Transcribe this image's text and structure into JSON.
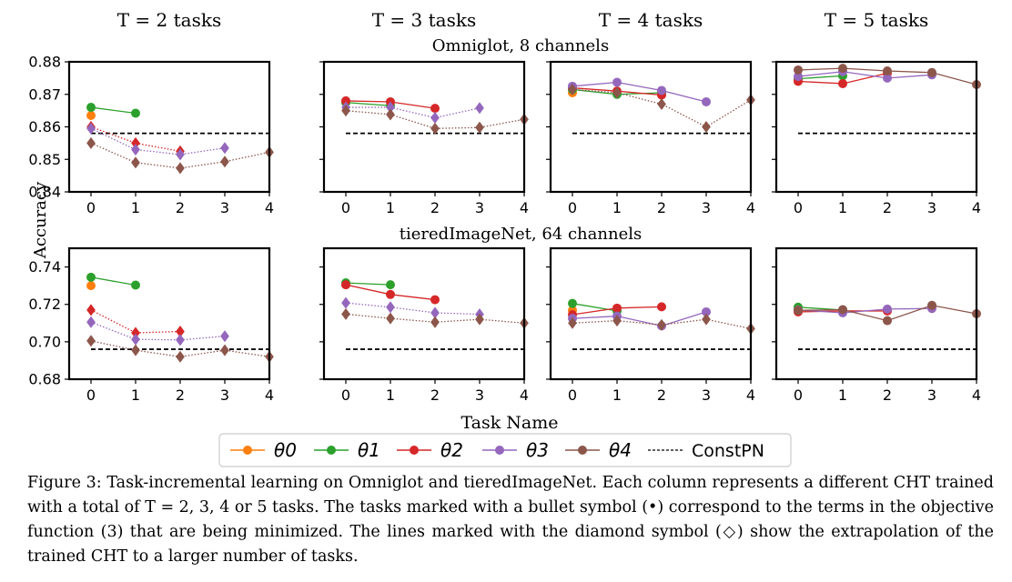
{
  "figure": {
    "column_titles": [
      "T = 2 tasks",
      "T = 3 tasks",
      "T = 4 tasks",
      "T = 5 tasks"
    ],
    "row_titles": [
      "Omniglot, 8 channels",
      "tieredImageNet, 64 channels"
    ],
    "ylabel": "Accuracy",
    "xlabel": "Task Name",
    "legend": [
      "θ0",
      "θ1",
      "θ2",
      "θ3",
      "θ4",
      "ConstPN"
    ],
    "colors": {
      "theta0": "#ff7f0e",
      "theta1": "#2ca02c",
      "theta2": "#d62728",
      "theta3": "#9467bd",
      "theta4": "#8c564b",
      "constpn": "#000000"
    }
  },
  "caption": {
    "label": "Figure 3:",
    "text": "Task-incremental learning on Omniglot and tieredImageNet. Each column represents a different CHT trained with a total of T = 2, 3, 4 or 5 tasks. The tasks marked with a bullet symbol (•) correspond to the terms in the objective function (3) that are being minimized. The lines marked with the diamond symbol (◇) show the extrapolation of the trained CHT to a larger number of tasks."
  },
  "chart_data": [
    {
      "type": "line",
      "panel": "Omniglot T=2",
      "x": [
        0,
        1,
        2,
        3,
        4
      ],
      "ylim": [
        0.84,
        0.88
      ],
      "yticks": [
        "0.84",
        "0.85",
        "0.86",
        "0.87",
        "0.88"
      ],
      "constpn": 0.858,
      "series": [
        {
          "name": "θ0",
          "trained": [
            [
              0,
              0.8635
            ]
          ],
          "extrap": []
        },
        {
          "name": "θ1",
          "trained": [
            [
              0,
              0.866
            ],
            [
              1,
              0.8642
            ]
          ],
          "extrap": []
        },
        {
          "name": "θ2",
          "trained": [],
          "extrap": [
            [
              0,
              0.86
            ],
            [
              1,
              0.855
            ],
            [
              2,
              0.8525
            ]
          ]
        },
        {
          "name": "θ3",
          "trained": [],
          "extrap": [
            [
              0,
              0.8595
            ],
            [
              1,
              0.853
            ],
            [
              2,
              0.8515
            ],
            [
              3,
              0.8535
            ]
          ]
        },
        {
          "name": "θ4",
          "trained": [],
          "extrap": [
            [
              0,
              0.855
            ],
            [
              1,
              0.849
            ],
            [
              2,
              0.8473
            ],
            [
              3,
              0.8493
            ],
            [
              4,
              0.8522
            ]
          ]
        }
      ]
    },
    {
      "type": "line",
      "panel": "Omniglot T=3",
      "x": [
        0,
        1,
        2,
        3,
        4
      ],
      "ylim": [
        0.84,
        0.88
      ],
      "yticks": [],
      "constpn": 0.858,
      "series": [
        {
          "name": "θ0",
          "trained": [
            [
              0,
              0.8675
            ]
          ],
          "extrap": []
        },
        {
          "name": "θ1",
          "trained": [
            [
              0,
              0.8675
            ],
            [
              1,
              0.8665
            ]
          ],
          "extrap": []
        },
        {
          "name": "θ2",
          "trained": [
            [
              0,
              0.868
            ],
            [
              1,
              0.8677
            ],
            [
              2,
              0.8657
            ]
          ],
          "extrap": []
        },
        {
          "name": "θ3",
          "trained": [],
          "extrap": [
            [
              0,
              0.866
            ],
            [
              1,
              0.866
            ],
            [
              2,
              0.8628
            ],
            [
              3,
              0.8658
            ]
          ]
        },
        {
          "name": "θ4",
          "trained": [],
          "extrap": [
            [
              0,
              0.865
            ],
            [
              1,
              0.8638
            ],
            [
              2,
              0.8595
            ],
            [
              3,
              0.8598
            ],
            [
              4,
              0.8623
            ]
          ]
        }
      ]
    },
    {
      "type": "line",
      "panel": "Omniglot T=4",
      "x": [
        0,
        1,
        2,
        3,
        4
      ],
      "ylim": [
        0.84,
        0.88
      ],
      "yticks": [],
      "constpn": 0.858,
      "series": [
        {
          "name": "θ0",
          "trained": [
            [
              0,
              0.8705
            ]
          ],
          "extrap": []
        },
        {
          "name": "θ1",
          "trained": [
            [
              0,
              0.8715
            ],
            [
              1,
              0.87
            ],
            [
              2,
              0.8705
            ]
          ],
          "extrap": []
        },
        {
          "name": "θ2",
          "trained": [
            [
              0,
              0.872
            ],
            [
              1,
              0.871
            ],
            [
              2,
              0.8698
            ]
          ],
          "extrap": []
        },
        {
          "name": "θ3",
          "trained": [
            [
              0,
              0.8725
            ],
            [
              1,
              0.8737
            ],
            [
              2,
              0.8712
            ],
            [
              3,
              0.8677
            ]
          ],
          "extrap": []
        },
        {
          "name": "θ4",
          "trained": [],
          "extrap": [
            [
              0,
              0.8715
            ],
            [
              1,
              0.8705
            ],
            [
              2,
              0.867
            ],
            [
              3,
              0.86
            ],
            [
              4,
              0.8683
            ]
          ]
        }
      ]
    },
    {
      "type": "line",
      "panel": "Omniglot T=5",
      "x": [
        0,
        1,
        2,
        3,
        4
      ],
      "ylim": [
        0.84,
        0.88
      ],
      "yticks": [],
      "constpn": 0.858,
      "series": [
        {
          "name": "θ0",
          "trained": [
            [
              0,
              0.8745
            ]
          ],
          "extrap": []
        },
        {
          "name": "θ1",
          "trained": [
            [
              0,
              0.8748
            ],
            [
              1,
              0.8757
            ]
          ],
          "extrap": []
        },
        {
          "name": "θ2",
          "trained": [
            [
              0,
              0.874
            ],
            [
              1,
              0.8733
            ],
            [
              2,
              0.8765
            ]
          ],
          "extrap": []
        },
        {
          "name": "θ3",
          "trained": [
            [
              0,
              0.8755
            ],
            [
              1,
              0.877
            ],
            [
              2,
              0.875
            ],
            [
              3,
              0.876
            ]
          ],
          "extrap": []
        },
        {
          "name": "θ4",
          "trained": [
            [
              0,
              0.8775
            ],
            [
              1,
              0.878
            ],
            [
              2,
              0.8772
            ],
            [
              3,
              0.8767
            ],
            [
              4,
              0.873
            ]
          ],
          "extrap": []
        }
      ]
    },
    {
      "type": "line",
      "panel": "tieredImageNet T=2",
      "x": [
        0,
        1,
        2,
        3,
        4
      ],
      "ylim": [
        0.68,
        0.75
      ],
      "yticks": [
        "0.68",
        "0.70",
        "0.72",
        "0.74"
      ],
      "constpn": 0.696,
      "series": [
        {
          "name": "θ0",
          "trained": [
            [
              0,
              0.73
            ]
          ],
          "extrap": []
        },
        {
          "name": "θ1",
          "trained": [
            [
              0,
              0.7345
            ],
            [
              1,
              0.7303
            ]
          ],
          "extrap": []
        },
        {
          "name": "θ2",
          "trained": [],
          "extrap": [
            [
              0,
              0.717
            ],
            [
              1,
              0.7048
            ],
            [
              2,
              0.7055
            ]
          ]
        },
        {
          "name": "θ3",
          "trained": [],
          "extrap": [
            [
              0,
              0.7105
            ],
            [
              1,
              0.7013
            ],
            [
              2,
              0.701
            ],
            [
              3,
              0.703
            ]
          ]
        },
        {
          "name": "θ4",
          "trained": [],
          "extrap": [
            [
              0,
              0.7005
            ],
            [
              1,
              0.6955
            ],
            [
              2,
              0.692
            ],
            [
              3,
              0.6955
            ],
            [
              4,
              0.692
            ]
          ]
        }
      ]
    },
    {
      "type": "line",
      "panel": "tieredImageNet T=3",
      "x": [
        0,
        1,
        2,
        3,
        4
      ],
      "ylim": [
        0.68,
        0.75
      ],
      "yticks": [],
      "constpn": 0.696,
      "series": [
        {
          "name": "θ0",
          "trained": [
            [
              0,
              0.7305
            ]
          ],
          "extrap": []
        },
        {
          "name": "θ1",
          "trained": [
            [
              0,
              0.7315
            ],
            [
              1,
              0.7305
            ]
          ],
          "extrap": []
        },
        {
          "name": "θ2",
          "trained": [
            [
              0,
              0.7305
            ],
            [
              1,
              0.7253
            ],
            [
              2,
              0.7225
            ]
          ],
          "extrap": []
        },
        {
          "name": "θ3",
          "trained": [],
          "extrap": [
            [
              0,
              0.7208
            ],
            [
              1,
              0.7185
            ],
            [
              2,
              0.7155
            ],
            [
              3,
              0.7147
            ]
          ]
        },
        {
          "name": "θ4",
          "trained": [],
          "extrap": [
            [
              0,
              0.7148
            ],
            [
              1,
              0.7125
            ],
            [
              2,
              0.7105
            ],
            [
              3,
              0.712
            ],
            [
              4,
              0.71
            ]
          ]
        }
      ]
    },
    {
      "type": "line",
      "panel": "tieredImageNet T=4",
      "x": [
        0,
        1,
        2,
        3,
        4
      ],
      "ylim": [
        0.68,
        0.75
      ],
      "yticks": [],
      "constpn": 0.696,
      "series": [
        {
          "name": "θ0",
          "trained": [
            [
              0,
              0.7168
            ]
          ],
          "extrap": []
        },
        {
          "name": "θ1",
          "trained": [
            [
              0,
              0.7205
            ],
            [
              1,
              0.7165
            ]
          ],
          "extrap": []
        },
        {
          "name": "θ2",
          "trained": [
            [
              0,
              0.7145
            ],
            [
              1,
              0.718
            ],
            [
              2,
              0.7187
            ]
          ],
          "extrap": []
        },
        {
          "name": "θ3",
          "trained": [
            [
              0,
              0.7125
            ],
            [
              1,
              0.7137
            ],
            [
              2,
              0.7085
            ],
            [
              3,
              0.716
            ]
          ],
          "extrap": []
        },
        {
          "name": "θ4",
          "trained": [],
          "extrap": [
            [
              0,
              0.71
            ],
            [
              1,
              0.7113
            ],
            [
              2,
              0.709
            ],
            [
              3,
              0.712
            ],
            [
              4,
              0.707
            ]
          ]
        }
      ]
    },
    {
      "type": "line",
      "panel": "tieredImageNet T=5",
      "x": [
        0,
        1,
        2,
        3,
        4
      ],
      "ylim": [
        0.68,
        0.75
      ],
      "yticks": [],
      "constpn": 0.696,
      "series": [
        {
          "name": "θ0",
          "trained": [
            [
              0,
              0.7175
            ]
          ],
          "extrap": []
        },
        {
          "name": "θ1",
          "trained": [
            [
              0,
              0.7185
            ],
            [
              1,
              0.717
            ]
          ],
          "extrap": []
        },
        {
          "name": "θ2",
          "trained": [
            [
              0,
              0.716
            ],
            [
              1,
              0.7165
            ],
            [
              2,
              0.7165
            ]
          ],
          "extrap": []
        },
        {
          "name": "θ3",
          "trained": [
            [
              0,
              0.717
            ],
            [
              1,
              0.7155
            ],
            [
              2,
              0.7175
            ],
            [
              3,
              0.7178
            ]
          ],
          "extrap": []
        },
        {
          "name": "θ4",
          "trained": [
            [
              0,
              0.7168
            ],
            [
              1,
              0.7172
            ],
            [
              2,
              0.7113
            ],
            [
              3,
              0.7195
            ],
            [
              4,
              0.715
            ]
          ],
          "extrap": []
        }
      ]
    }
  ]
}
